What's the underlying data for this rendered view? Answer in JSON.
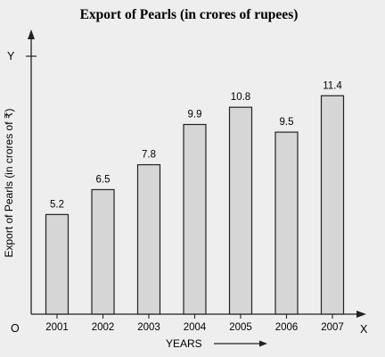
{
  "chart_data": {
    "type": "bar",
    "title": "Export of Pearls (in crores of rupees)",
    "xlabel": "YEARS",
    "ylabel": "Export of Pearls (in crores of ₹)",
    "categories": [
      "2001",
      "2002",
      "2003",
      "2004",
      "2005",
      "2006",
      "2007"
    ],
    "values": [
      5.2,
      6.5,
      7.8,
      9.9,
      10.8,
      9.5,
      11.4
    ],
    "value_labels": [
      "5.2",
      "6.5",
      "7.8",
      "9.9",
      "10.8",
      "9.5",
      "11.4"
    ],
    "ylim": [
      0,
      15
    ],
    "grid": false,
    "origin_label": "O",
    "x_axis_letter": "X",
    "y_axis_letter": "Y",
    "bar_color": "#d6d6d6",
    "bar_edge_color": "#222222"
  }
}
